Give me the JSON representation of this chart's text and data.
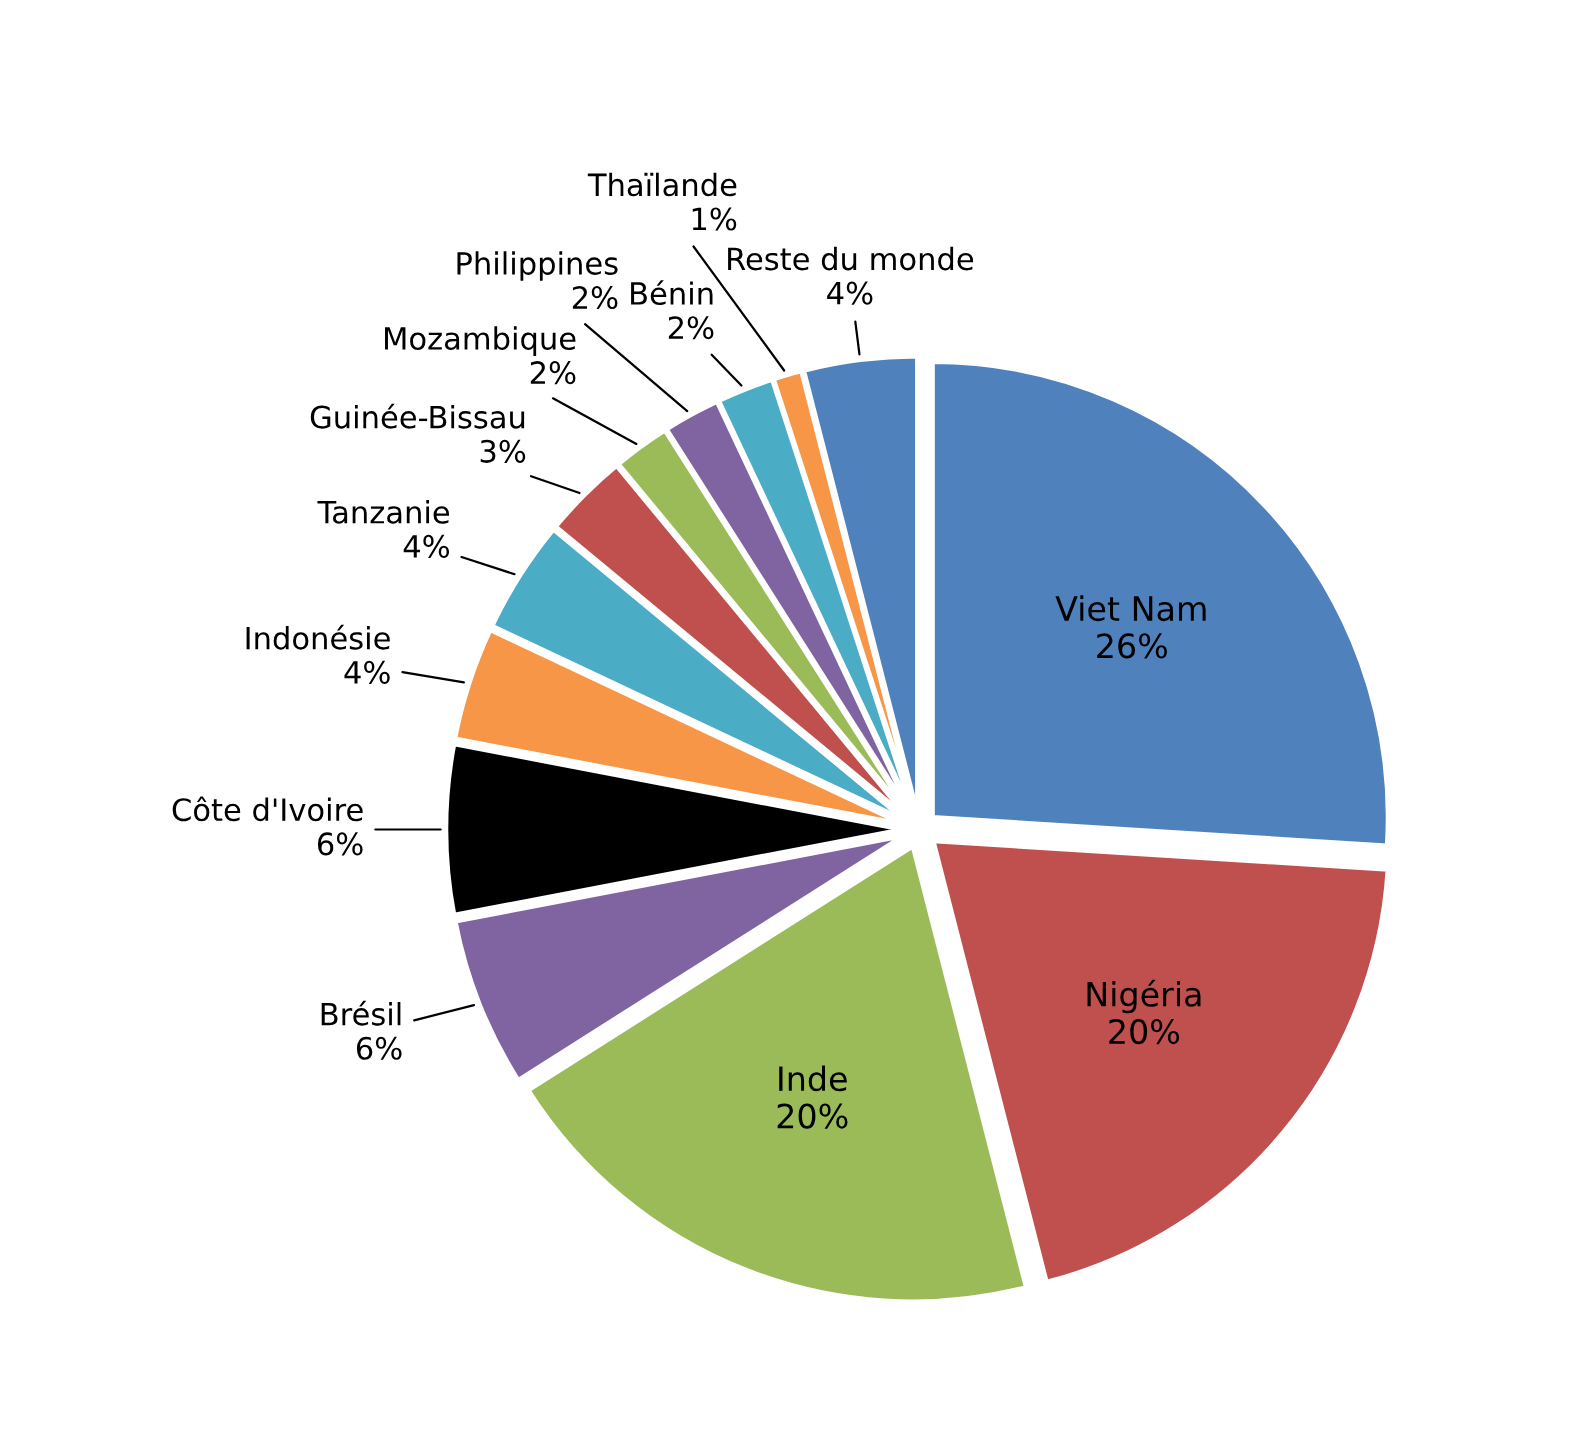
{
  "chart_data": {
    "type": "pie",
    "categories": [
      "Viet Nam",
      "Nigéria",
      "Inde",
      "Brésil",
      "Côte d'Ivoire",
      "Indonésie",
      "Tanzanie",
      "Guinée-Bissau",
      "Mozambique",
      "Philippines",
      "Bénin",
      "Thaïlande",
      "Reste du monde"
    ],
    "values": [
      26,
      20,
      20,
      6,
      6,
      4,
      4,
      3,
      2,
      2,
      2,
      1,
      4
    ],
    "value_labels": [
      "26%",
      "20%",
      "20%",
      "6%",
      "6%",
      "4%",
      "4%",
      "3%",
      "2%",
      "2%",
      "2%",
      "1%",
      "4%"
    ],
    "colors": [
      "#4f81bd",
      "#c0504d",
      "#9bbb59",
      "#8064a2",
      "#000000",
      "#f79646",
      "#4bacc6",
      "#c0504d",
      "#9bbb59",
      "#8064a2",
      "#4bacc6",
      "#f79646",
      "#4f81bd"
    ],
    "legend": false
  }
}
